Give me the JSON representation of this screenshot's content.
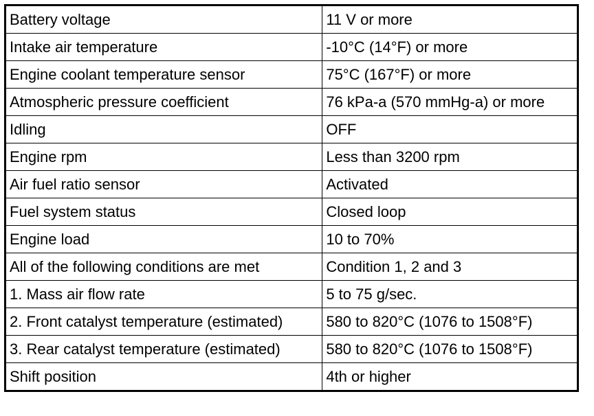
{
  "table": {
    "rows": [
      {
        "item": "Battery voltage",
        "value": "11 V or more"
      },
      {
        "item": "Intake air temperature",
        "value": "-10°C (14°F) or more"
      },
      {
        "item": "Engine coolant temperature sensor",
        "value": "75°C (167°F) or more"
      },
      {
        "item": "Atmospheric pressure coefficient",
        "value": "76 kPa-a (570 mmHg-a) or more"
      },
      {
        "item": "Idling",
        "value": "OFF"
      },
      {
        "item": "Engine rpm",
        "value": "Less than 3200 rpm"
      },
      {
        "item": "Air fuel ratio sensor",
        "value": "Activated"
      },
      {
        "item": "Fuel system status",
        "value": "Closed loop"
      },
      {
        "item": "Engine load",
        "value": "10 to 70%"
      },
      {
        "item": "All of the following conditions are met",
        "value": "Condition 1, 2 and 3"
      },
      {
        "item": "1. Mass air flow rate",
        "value": "5 to 75 g/sec."
      },
      {
        "item": "2. Front catalyst temperature (estimated)",
        "value": "580 to 820°C (1076 to 1508°F)"
      },
      {
        "item": "3. Rear catalyst temperature (estimated)",
        "value": "580 to 820°C (1076 to 1508°F)"
      },
      {
        "item": "Shift position",
        "value": "4th or higher"
      }
    ]
  }
}
